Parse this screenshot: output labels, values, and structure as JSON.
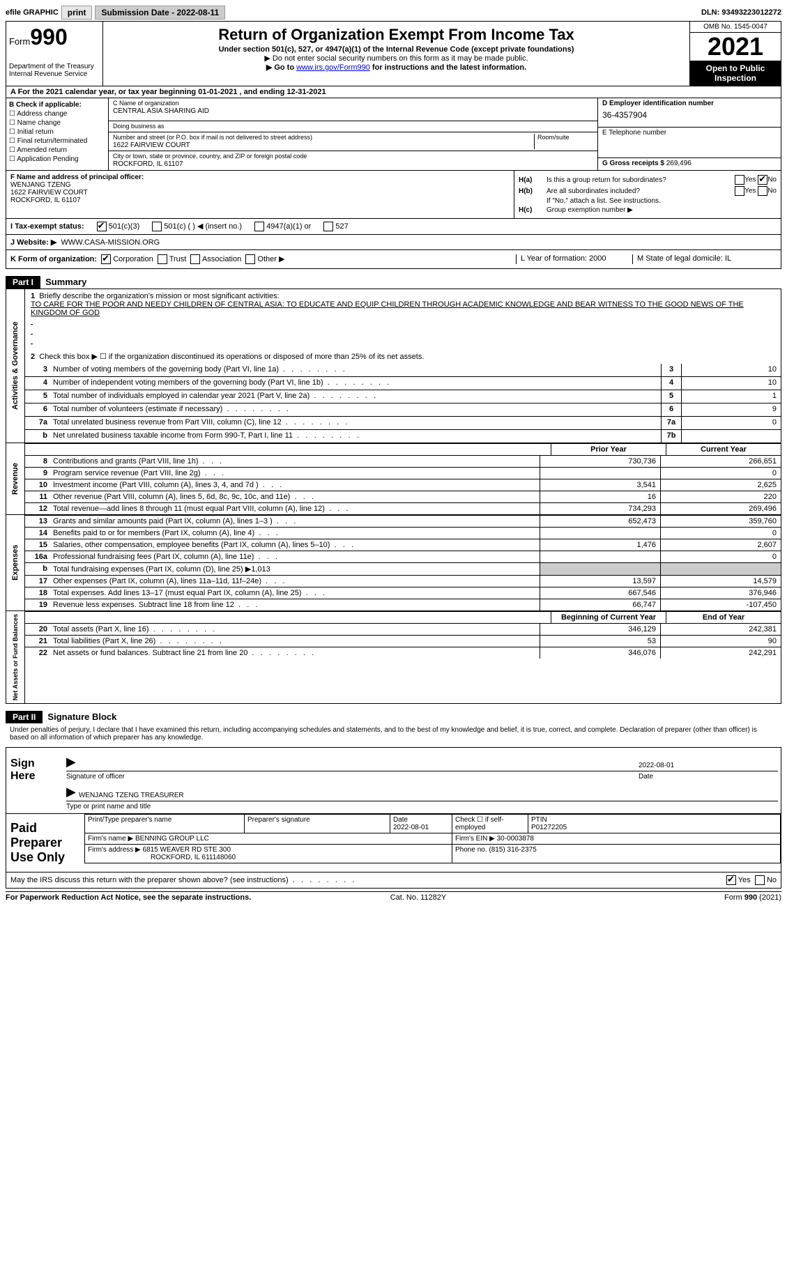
{
  "topbar": {
    "efile_label": "efile GRAPHIC",
    "print_btn": "print",
    "submission_label": "Submission Date - 2022-08-11",
    "dln": "DLN: 93493223012272"
  },
  "header": {
    "form_label": "Form",
    "form_number": "990",
    "dept": "Department of the Treasury",
    "irs": "Internal Revenue Service",
    "title": "Return of Organization Exempt From Income Tax",
    "subtitle": "Under section 501(c), 527, or 4947(a)(1) of the Internal Revenue Code (except private foundations)",
    "note1": "▶ Do not enter social security numbers on this form as it may be made public.",
    "note2_pre": "▶ Go to ",
    "note2_link": "www.irs.gov/Form990",
    "note2_post": " for instructions and the latest information.",
    "omb": "OMB No. 1545-0047",
    "year": "2021",
    "open": "Open to Public Inspection"
  },
  "row_a": "A For the 2021 calendar year, or tax year beginning 01-01-2021   , and ending 12-31-2021",
  "section_b": {
    "label": "B Check if applicable:",
    "opts": [
      "Address change",
      "Name change",
      "Initial return",
      "Final return/terminated",
      "Amended return",
      "Application Pending"
    ]
  },
  "section_c": {
    "name_label": "C Name of organization",
    "name": "CENTRAL ASIA SHARING AID",
    "dba_label": "Doing business as",
    "dba": "",
    "street_label": "Number and street (or P.O. box if mail is not delivered to street address)",
    "room_label": "Room/suite",
    "street": "1622 FAIRVIEW COURT",
    "city_label": "City or town, state or province, country, and ZIP or foreign postal code",
    "city": "ROCKFORD, IL  61107"
  },
  "section_d": {
    "label": "D Employer identification number",
    "ein": "36-4357904"
  },
  "section_e": {
    "label": "E Telephone number",
    "val": ""
  },
  "section_g": {
    "label": "G Gross receipts $",
    "val": "269,496"
  },
  "section_f": {
    "label": "F  Name and address of principal officer:",
    "name": "WENJANG TZENG",
    "street": "1622 FAIRVIEW COURT",
    "city": "ROCKFORD, IL  61107"
  },
  "section_h": {
    "a_label": "H(a)",
    "a_text": "Is this a group return for subordinates?",
    "a_yes": "Yes",
    "a_no": "No",
    "b_label": "H(b)",
    "b_text": "Are all subordinates included?",
    "b_note": "If \"No,\" attach a list. See instructions.",
    "c_label": "H(c)",
    "c_text": "Group exemption number ▶"
  },
  "row_i": {
    "label": "I   Tax-exempt status:",
    "o1": "501(c)(3)",
    "o2": "501(c) (  ) ◀ (insert no.)",
    "o3": "4947(a)(1) or",
    "o4": "527"
  },
  "row_j": {
    "label": "J   Website: ▶",
    "val": "WWW.CASA-MISSION.ORG"
  },
  "row_k": {
    "label": "K Form of organization:",
    "o1": "Corporation",
    "o2": "Trust",
    "o3": "Association",
    "o4": "Other ▶"
  },
  "row_l": {
    "label": "L Year of formation:",
    "val": "2000"
  },
  "row_m": {
    "label": "M State of legal domicile:",
    "val": "IL"
  },
  "parts": {
    "p1": "Part I",
    "p1_title": "Summary",
    "p2": "Part II",
    "p2_title": "Signature Block"
  },
  "vtabs": {
    "ag": "Activities & Governance",
    "rev": "Revenue",
    "exp": "Expenses",
    "na": "Net Assets or Fund Balances"
  },
  "summary": {
    "l1_label": "Briefly describe the organization's mission or most significant activities:",
    "l1_text": "TO CARE FOR THE POOR AND NEEDY CHILDREN OF CENTRAL ASIA: TO EDUCATE AND EQUIP CHILDREN THROUGH ACADEMIC KNOWLEDGE AND BEAR WITNESS TO THE GOOD NEWS OF THE KINGDOM OF GOD",
    "l2": "Check this box ▶ ☐  if the organization discontinued its operations or disposed of more than 25% of its net assets.",
    "lines": [
      {
        "n": "3",
        "t": "Number of voting members of the governing body (Part VI, line 1a)",
        "box": "3",
        "v": "10"
      },
      {
        "n": "4",
        "t": "Number of independent voting members of the governing body (Part VI, line 1b)",
        "box": "4",
        "v": "10"
      },
      {
        "n": "5",
        "t": "Total number of individuals employed in calendar year 2021 (Part V, line 2a)",
        "box": "5",
        "v": "1"
      },
      {
        "n": "6",
        "t": "Total number of volunteers (estimate if necessary)",
        "box": "6",
        "v": "9"
      },
      {
        "n": "7a",
        "t": "Total unrelated business revenue from Part VIII, column (C), line 12",
        "box": "7a",
        "v": "0"
      },
      {
        "n": "b",
        "t": "Net unrelated business taxable income from Form 990-T, Part I, line 11",
        "box": "7b",
        "v": ""
      }
    ]
  },
  "fin_hdr": {
    "c1": "Prior Year",
    "c2": "Current Year"
  },
  "revenue": [
    {
      "n": "8",
      "t": "Contributions and grants (Part VIII, line 1h)",
      "c1": "730,736",
      "c2": "266,651"
    },
    {
      "n": "9",
      "t": "Program service revenue (Part VIII, line 2g)",
      "c1": "",
      "c2": "0"
    },
    {
      "n": "10",
      "t": "Investment income (Part VIII, column (A), lines 3, 4, and 7d )",
      "c1": "3,541",
      "c2": "2,625"
    },
    {
      "n": "11",
      "t": "Other revenue (Part VIII, column (A), lines 5, 6d, 8c, 9c, 10c, and 11e)",
      "c1": "16",
      "c2": "220"
    },
    {
      "n": "12",
      "t": "Total revenue—add lines 8 through 11 (must equal Part VIII, column (A), line 12)",
      "c1": "734,293",
      "c2": "269,496"
    }
  ],
  "expenses": [
    {
      "n": "13",
      "t": "Grants and similar amounts paid (Part IX, column (A), lines 1–3 )",
      "c1": "652,473",
      "c2": "359,760"
    },
    {
      "n": "14",
      "t": "Benefits paid to or for members (Part IX, column (A), line 4)",
      "c1": "",
      "c2": "0"
    },
    {
      "n": "15",
      "t": "Salaries, other compensation, employee benefits (Part IX, column (A), lines 5–10)",
      "c1": "1,476",
      "c2": "2,607"
    },
    {
      "n": "16a",
      "t": "Professional fundraising fees (Part IX, column (A), line 11e)",
      "c1": "",
      "c2": "0"
    },
    {
      "n": "b",
      "t": "Total fundraising expenses (Part IX, column (D), line 25) ▶1,013",
      "shade": true
    },
    {
      "n": "17",
      "t": "Other expenses (Part IX, column (A), lines 11a–11d, 11f–24e)",
      "c1": "13,597",
      "c2": "14,579"
    },
    {
      "n": "18",
      "t": "Total expenses. Add lines 13–17 (must equal Part IX, column (A), line 25)",
      "c1": "667,546",
      "c2": "376,946"
    },
    {
      "n": "19",
      "t": "Revenue less expenses. Subtract line 18 from line 12",
      "c1": "66,747",
      "c2": "-107,450"
    }
  ],
  "na_hdr": {
    "c1": "Beginning of Current Year",
    "c2": "End of Year"
  },
  "netassets": [
    {
      "n": "20",
      "t": "Total assets (Part X, line 16)",
      "c1": "346,129",
      "c2": "242,381"
    },
    {
      "n": "21",
      "t": "Total liabilities (Part X, line 26)",
      "c1": "53",
      "c2": "90"
    },
    {
      "n": "22",
      "t": "Net assets or fund balances. Subtract line 21 from line 20",
      "c1": "346,076",
      "c2": "242,291"
    }
  ],
  "sig": {
    "declaration": "Under penalties of perjury, I declare that I have examined this return, including accompanying schedules and statements, and to the best of my knowledge and belief, it is true, correct, and complete. Declaration of preparer (other than officer) is based on all information of which preparer has any knowledge.",
    "sign_here": "Sign Here",
    "sig_officer": "Signature of officer",
    "date": "Date",
    "date_val": "2022-08-01",
    "name_title": "WENJANG TZENG  TREASURER",
    "name_title_label": "Type or print name and title"
  },
  "paid": {
    "label": "Paid Preparer Use Only",
    "h1": "Print/Type preparer's name",
    "h2": "Preparer's signature",
    "h3": "Date",
    "date": "2022-08-01",
    "h4": "Check ☐ if self-employed",
    "h5": "PTIN",
    "ptin": "P01272205",
    "firm_name_l": "Firm's name    ▶",
    "firm_name": "BENNING GROUP LLC",
    "firm_ein_l": "Firm's EIN ▶",
    "firm_ein": "30-0003878",
    "firm_addr_l": "Firm's address ▶",
    "firm_addr1": "6815 WEAVER RD STE 300",
    "firm_addr2": "ROCKFORD, IL  611148060",
    "phone_l": "Phone no.",
    "phone": "(815) 316-2375"
  },
  "footer": {
    "discuss": "May the IRS discuss this return with the preparer shown above? (see instructions)",
    "yes": "Yes",
    "no": "No",
    "pra": "For Paperwork Reduction Act Notice, see the separate instructions.",
    "cat": "Cat. No. 11282Y",
    "form": "Form 990 (2021)"
  }
}
